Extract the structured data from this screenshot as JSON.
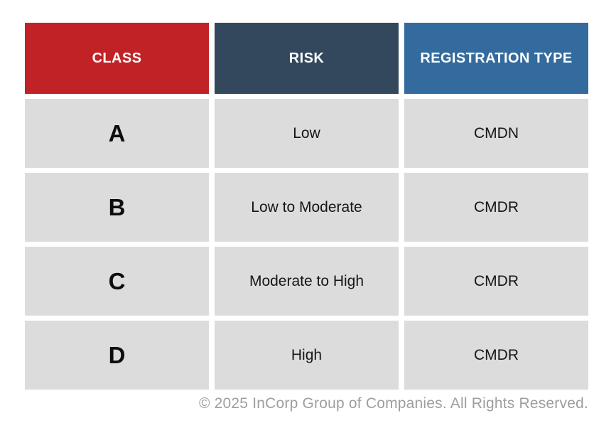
{
  "chart_data": {
    "type": "table",
    "title": "",
    "columns": [
      "CLASS",
      "RISK",
      "REGISTRATION TYPE"
    ],
    "rows": [
      [
        "A",
        "Low",
        "CMDN"
      ],
      [
        "B",
        "Low to Moderate",
        "CMDR"
      ],
      [
        "C",
        "Moderate to High",
        "CMDR"
      ],
      [
        "D",
        "High",
        "CMDR"
      ]
    ],
    "legend": "none",
    "grid": "off"
  },
  "colors": {
    "class_header_bg": "#c12225",
    "risk_header_bg": "#33485c",
    "registration_header_bg": "#346b9e",
    "header_text": "#ffffff",
    "cell_bg": "#dcdcdc",
    "cell_text": "#161616",
    "footer_text": "#9e9e9e",
    "background": "#ffffff"
  },
  "footer": {
    "text": "© 2025 InCorp Group of Companies. All Rights Reserved."
  }
}
